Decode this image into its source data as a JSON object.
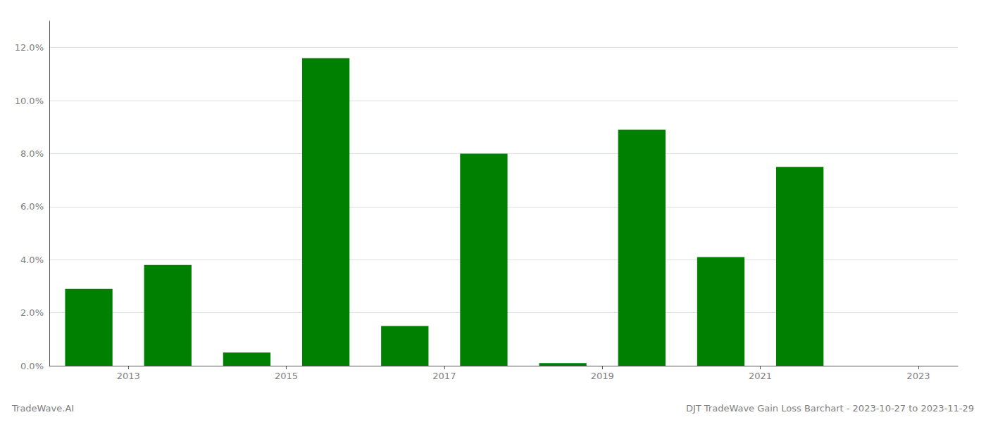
{
  "chart_data": {
    "type": "bar",
    "title": "DJT TradeWave Gain Loss Barchart - 2023-10-27 to 2023-11-29",
    "annotations": [
      "TradeWave.AI"
    ],
    "x": [
      2013,
      2014,
      2015,
      2016,
      2017,
      2018,
      2019,
      2020,
      2021,
      2022,
      2023
    ],
    "values": [
      0.029,
      0.038,
      0.005,
      0.116,
      0.015,
      0.08,
      0.001,
      0.089,
      0.041,
      0.075,
      0.0
    ],
    "color": "#008000",
    "xlim": [
      2012.5,
      2024.0
    ],
    "xticks": [
      {
        "value": 2013.5,
        "label": "2013"
      },
      {
        "value": 2015.5,
        "label": "2015"
      },
      {
        "value": 2017.5,
        "label": "2017"
      },
      {
        "value": 2019.5,
        "label": "2019"
      },
      {
        "value": 2021.5,
        "label": "2021"
      },
      {
        "value": 2023.5,
        "label": "2023"
      }
    ],
    "ylim": [
      0,
      0.13
    ],
    "yticks": [
      {
        "value": 0,
        "label": "0.0%"
      },
      {
        "value": 0.02,
        "label": "2.0%"
      },
      {
        "value": 0.04,
        "label": "4.0%"
      },
      {
        "value": 0.06,
        "label": "6.0%"
      },
      {
        "value": 0.08,
        "label": "8.0%"
      },
      {
        "value": 0.1,
        "label": "10.0%"
      },
      {
        "value": 0.12,
        "label": "12.0%"
      }
    ],
    "grid": true
  }
}
